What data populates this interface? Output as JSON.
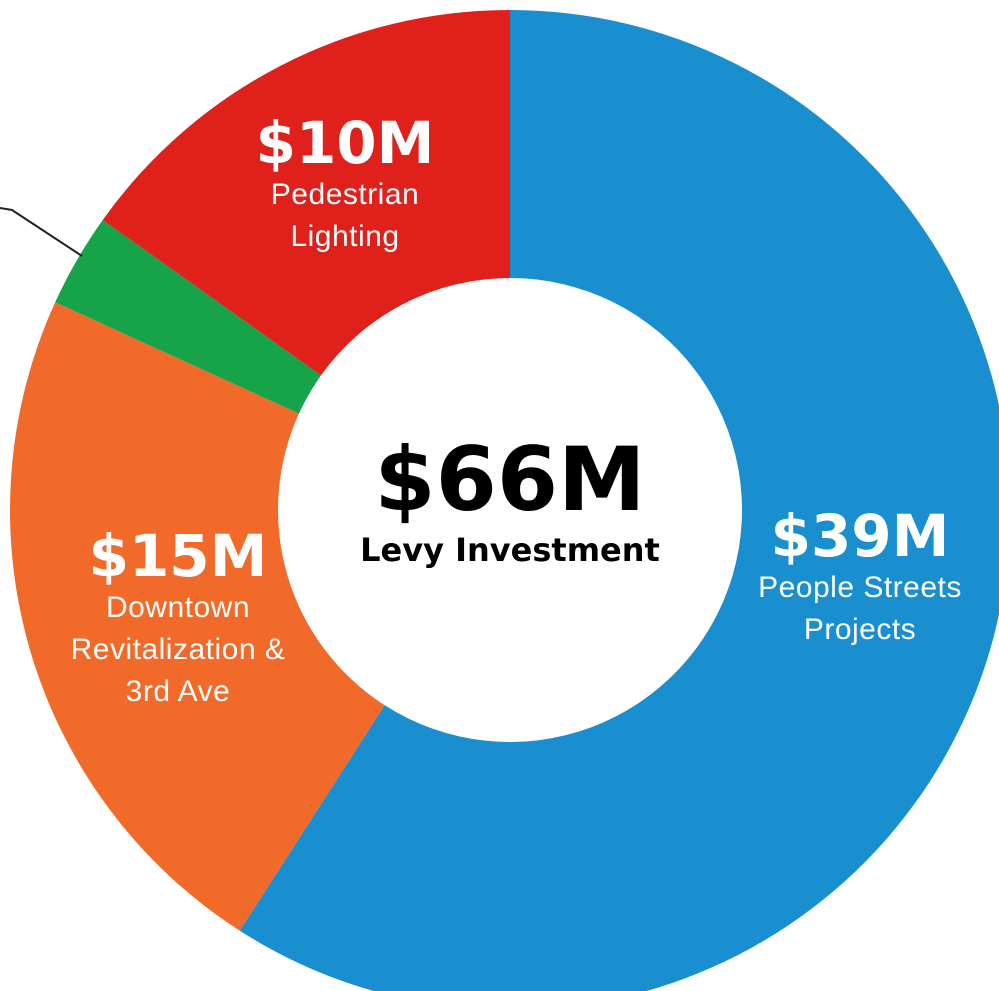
{
  "chart_data": {
    "type": "pie",
    "center_title": "$66M",
    "center_subtitle": "Levy Investment",
    "categories": [
      "People Streets Projects",
      "Downtown Revitalization & 3rd Ave",
      null,
      "Pedestrian Lighting"
    ],
    "values": [
      39,
      15,
      2,
      10
    ],
    "value_labels": [
      "$39M",
      "$15M",
      null,
      "$10M"
    ],
    "colors": [
      "#1a8fd0",
      "#f26a2a",
      "#17a34a",
      "#e0201b"
    ]
  }
}
